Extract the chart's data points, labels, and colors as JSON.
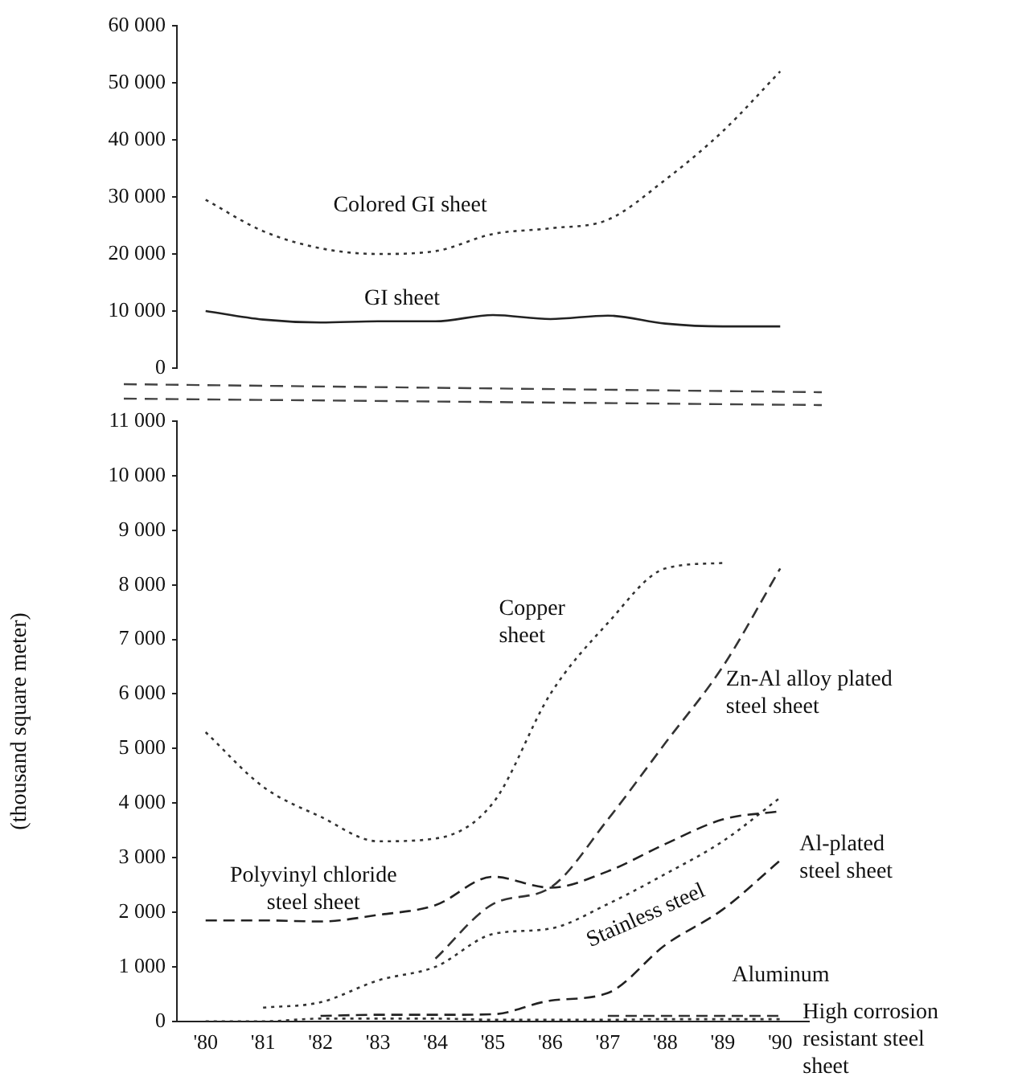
{
  "chart_data": [
    {
      "type": "line",
      "categories": [
        null,
        null,
        null,
        null,
        null,
        null,
        null,
        null,
        null,
        null,
        null
      ],
      "ylim": [
        0,
        60000
      ],
      "yticks": [
        0,
        {
          "value": 10000,
          "label": "10 000"
        },
        {
          "value": 20000,
          "label": "20 000"
        },
        {
          "value": 30000,
          "label": "30 000"
        },
        {
          "value": 40000,
          "label": "40 000"
        },
        {
          "value": 50000,
          "label": "50 000"
        },
        {
          "value": 60000,
          "label": "60 000"
        }
      ],
      "tick_labels": "y",
      "grid": false,
      "legend": false,
      "marker": "none",
      "series": [
        {
          "name": "Colored GI sheet",
          "color": "#333333",
          "line_style": "dotted",
          "values": [
            29500,
            24000,
            21000,
            20000,
            20500,
            23500,
            24500,
            26000,
            33000,
            41500,
            52000
          ]
        },
        {
          "name": "GI sheet",
          "color": "#222222",
          "line_style": "solid",
          "values": [
            10000,
            8500,
            8000,
            8200,
            8200,
            9300,
            8600,
            9200,
            7800,
            7300,
            7300
          ]
        }
      ]
    },
    {
      "type": "line",
      "categories": [
        "'80",
        "'81",
        "'82",
        "'83",
        "'84",
        "'85",
        "'86",
        "'87",
        "'88",
        "'89",
        "'90"
      ],
      "ylabel": "(thousand square meter)",
      "ylim": [
        0,
        11000
      ],
      "yticks": [
        0,
        {
          "value": 1000,
          "label": "1 000"
        },
        {
          "value": 2000,
          "label": "2 000"
        },
        {
          "value": 3000,
          "label": "3 000"
        },
        {
          "value": 4000,
          "label": "4 000"
        },
        {
          "value": 5000,
          "label": "5 000"
        },
        {
          "value": 6000,
          "label": "6 000"
        },
        {
          "value": 7000,
          "label": "7 000"
        },
        {
          "value": 8000,
          "label": "8 000"
        },
        {
          "value": 9000,
          "label": "9 000"
        },
        {
          "value": 10000,
          "label": "10 000"
        },
        {
          "value": 11000,
          "label": "11 000"
        }
      ],
      "grid": false,
      "legend": false,
      "marker": "none",
      "series": [
        {
          "name": "Copper sheet",
          "color": "#333333",
          "line_style": "dotted",
          "values": [
            5300,
            4300,
            3750,
            3300,
            3350,
            4000,
            6000,
            7300,
            8300,
            8400,
            null
          ]
        },
        {
          "name": "Zn-Al alloy plated steel sheet",
          "color": "#333333",
          "line_style": "dashed",
          "values": [
            null,
            null,
            null,
            null,
            1150,
            2150,
            2450,
            3700,
            5100,
            6500,
            8300
          ]
        },
        {
          "name": "Polyvinyl chloride steel sheet",
          "color": "#222222",
          "line_style": "dashed",
          "values": [
            1850,
            1850,
            1830,
            1950,
            2130,
            2650,
            2450,
            2750,
            3250,
            3700,
            3850
          ]
        },
        {
          "name": "Stainless steel",
          "color": "#333333",
          "line_style": "dotted",
          "values": [
            null,
            250,
            350,
            750,
            1000,
            1600,
            1700,
            2150,
            2700,
            3300,
            4100
          ]
        },
        {
          "name": "Al-plated steel sheet",
          "color": "#222222",
          "line_style": "dashed",
          "values": [
            null,
            null,
            100,
            120,
            120,
            130,
            380,
            520,
            1400,
            2050,
            2950
          ]
        },
        {
          "name": "Aluminum",
          "color": "#333333",
          "line_style": "dotted",
          "values": [
            0,
            0,
            50,
            50,
            50,
            30,
            30,
            30,
            40,
            40,
            40
          ]
        },
        {
          "name": "High corrosion resistant steel sheet",
          "color": "#333333",
          "line_style": "dashed",
          "values": [
            null,
            null,
            null,
            null,
            null,
            null,
            null,
            100,
            100,
            100,
            100
          ]
        }
      ]
    }
  ]
}
